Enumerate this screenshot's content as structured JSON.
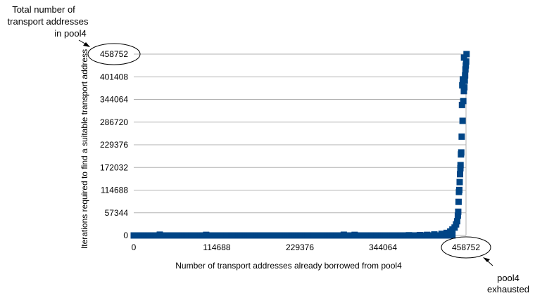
{
  "chart_data": {
    "type": "scatter",
    "xlabel": "Number of transport addresses already borrowed from pool4",
    "ylabel": "Iterations required to find a suitable transport address",
    "xlim": [
      0,
      458752
    ],
    "ylim": [
      0,
      458752
    ],
    "xticks": [
      0,
      114688,
      229376,
      344064,
      458752
    ],
    "yticks": [
      0,
      57344,
      114688,
      172032,
      229376,
      286720,
      344064,
      401408,
      458752
    ],
    "grid": "horizontal",
    "series": [
      {
        "color": "#004586",
        "marker": "square",
        "points": [
          [
            0,
            0
          ],
          [
            40000,
            0
          ],
          [
            80000,
            0
          ],
          [
            120000,
            0
          ],
          [
            160000,
            0
          ],
          [
            200000,
            0
          ],
          [
            240000,
            0
          ],
          [
            280000,
            0
          ],
          [
            320000,
            0
          ],
          [
            360000,
            0
          ],
          [
            36000,
            2000
          ],
          [
            100000,
            1500
          ],
          [
            290000,
            1800
          ],
          [
            305000,
            1500
          ],
          [
            380000,
            500
          ],
          [
            395000,
            1000
          ],
          [
            405000,
            1500
          ],
          [
            415000,
            2500
          ],
          [
            425000,
            4000
          ],
          [
            432000,
            6500
          ],
          [
            437000,
            10000
          ],
          [
            440000,
            15000
          ],
          [
            443000,
            20000
          ],
          [
            445000,
            28000
          ],
          [
            446500,
            36000
          ],
          [
            447500,
            50000
          ],
          [
            448000,
            60000
          ],
          [
            448500,
            85000
          ],
          [
            449000,
            110000
          ],
          [
            449500,
            115000
          ],
          [
            450000,
            135000
          ],
          [
            450500,
            155000
          ],
          [
            451000,
            170000
          ],
          [
            451200,
            178000
          ],
          [
            451800,
            205000
          ],
          [
            452200,
            210000
          ],
          [
            452800,
            250000
          ],
          [
            454000,
            290000
          ],
          [
            455000,
            340000
          ],
          [
            455800,
            365000
          ],
          [
            456500,
            375000
          ],
          [
            457000,
            392000
          ],
          [
            457500,
            405000
          ],
          [
            458000,
            420000
          ],
          [
            458500,
            430000
          ],
          [
            459000,
            440000
          ],
          [
            459500,
            458752
          ],
          [
            453200,
            330000
          ],
          [
            453600,
            380000
          ],
          [
            454400,
            395000
          ],
          [
            456000,
            450000
          ]
        ]
      }
    ],
    "annotations": [
      {
        "text": [
          "Total number of",
          "transport addresses",
          "in pool4"
        ],
        "target": "458752 on the y axis"
      },
      {
        "text": [
          "pool4",
          "exhausted"
        ],
        "target": "458752 on the x axis"
      }
    ]
  }
}
